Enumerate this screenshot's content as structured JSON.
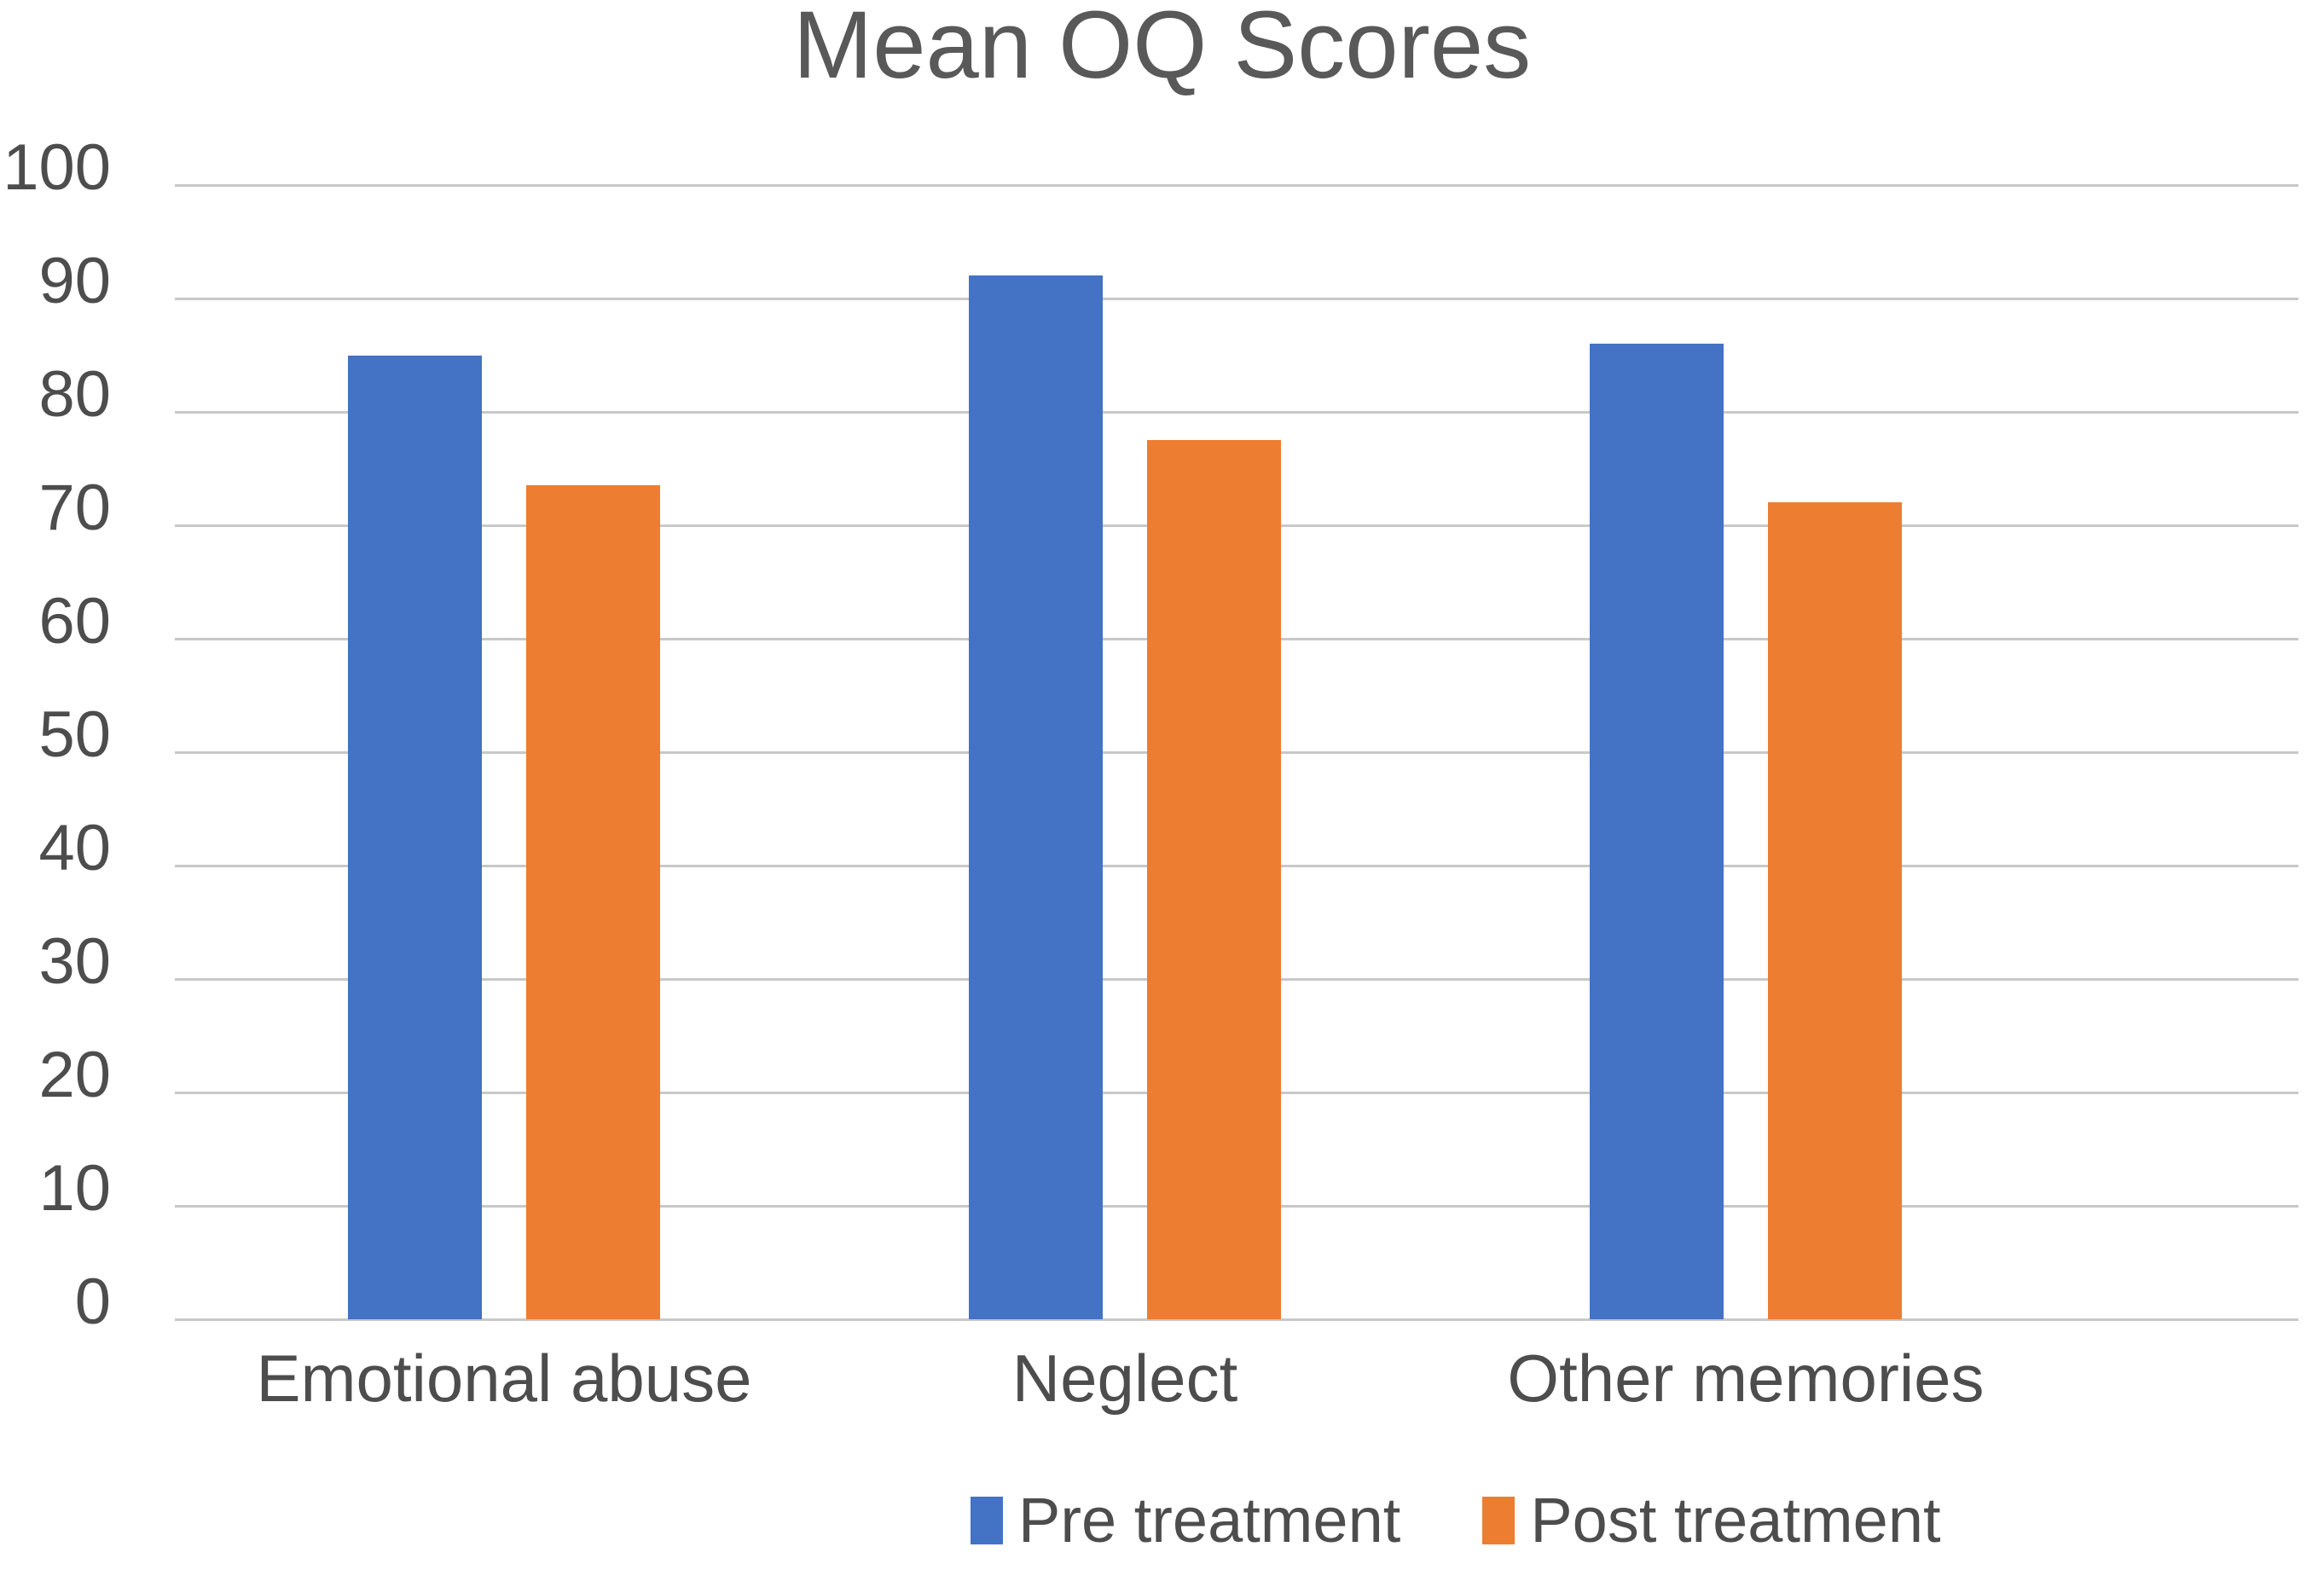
{
  "chart_data": {
    "type": "bar",
    "title": "Mean OQ Scores",
    "categories": [
      "Emotional abuse",
      "Neglect",
      "Other memories"
    ],
    "series": [
      {
        "name": "Pre treatment",
        "color": "#4472C4",
        "values": [
          85,
          92,
          86
        ]
      },
      {
        "name": "Post treatment",
        "color": "#ED7D31",
        "values": [
          73.5,
          77.5,
          72
        ]
      }
    ],
    "xlabel": "",
    "ylabel": "",
    "ylim": [
      0,
      100
    ],
    "yticks": [
      0,
      10,
      20,
      30,
      40,
      50,
      60,
      70,
      80,
      90,
      100
    ],
    "grid": "horizontal",
    "legend_position": "bottom"
  },
  "colors": {
    "title_text": "#595959",
    "axis_text": "#4d4d4d",
    "gridline": "#c8c8c8",
    "background": "#ffffff"
  }
}
